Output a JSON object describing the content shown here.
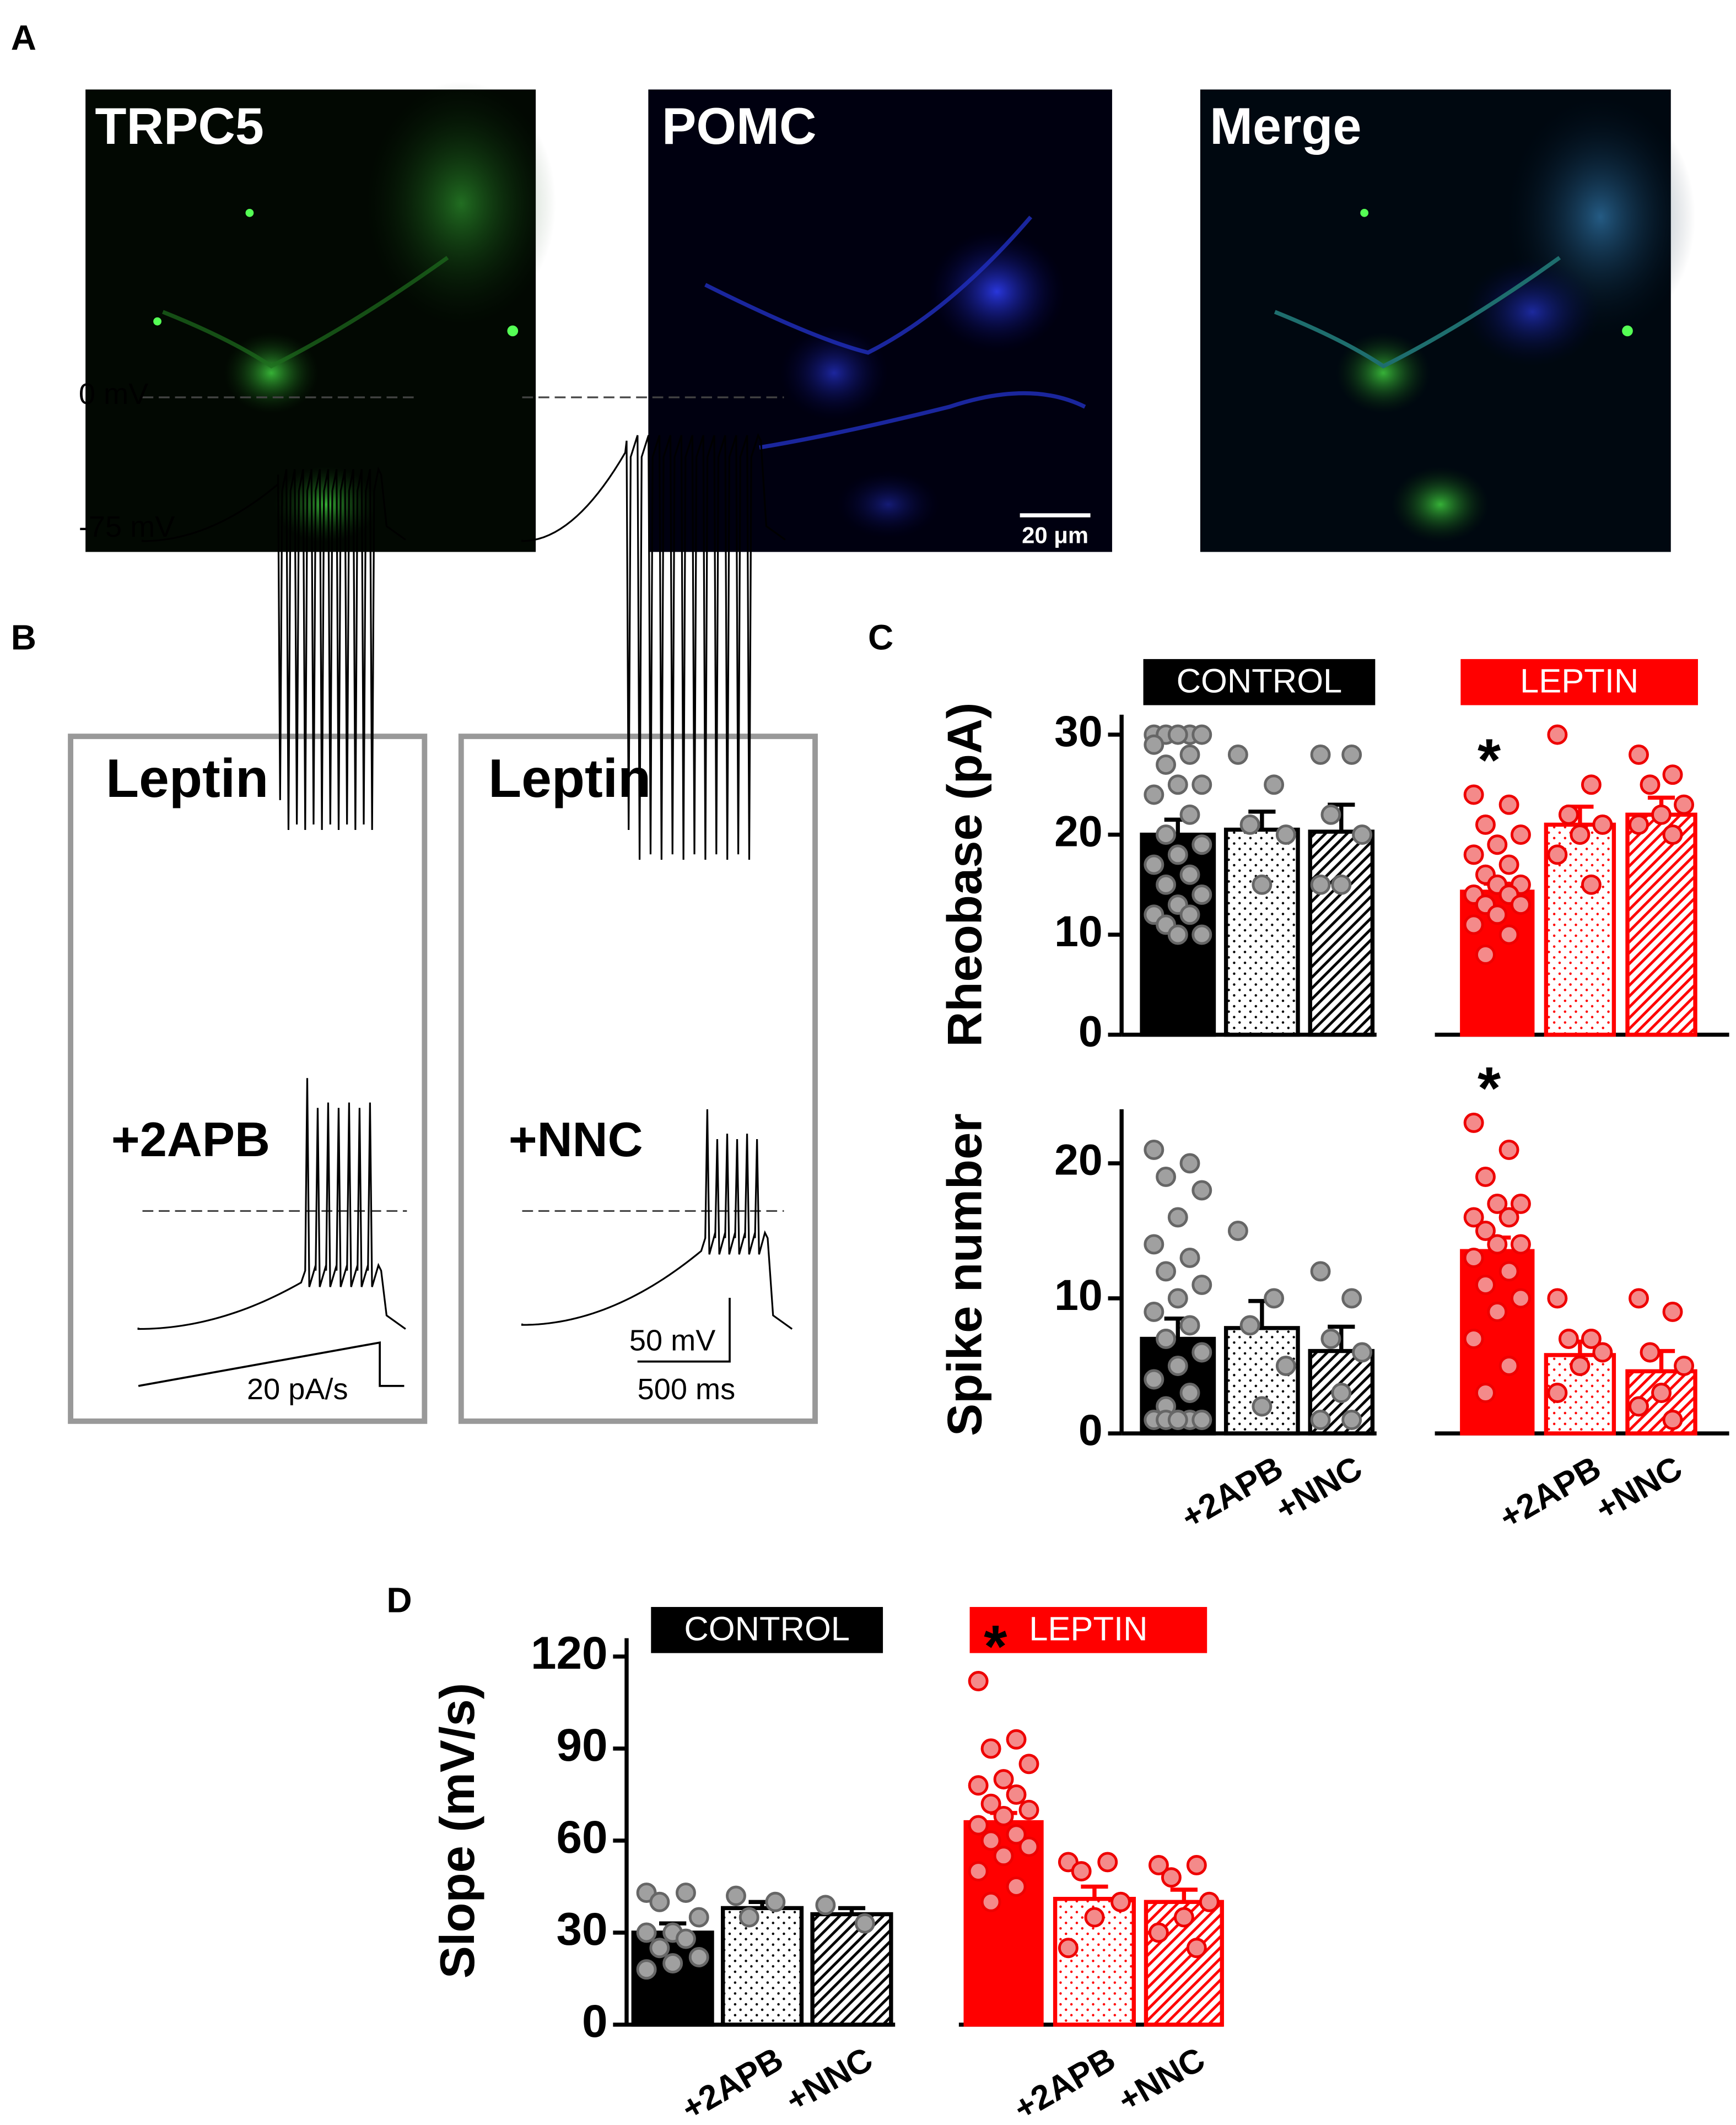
{
  "panel_labels": [
    "A",
    "B",
    "C",
    "D"
  ],
  "images": [
    {
      "label": "TRPC5"
    },
    {
      "label": "POMC"
    },
    {
      "label": "Merge"
    }
  ],
  "scale_bar": "20 μm",
  "traces": {
    "condition": "Leptin",
    "zero": "0 mV",
    "rest": "-75 mV",
    "drugs": [
      "+2APB",
      "+NNC"
    ],
    "ramp": "20 pA/s",
    "vbar": "50 mV",
    "tbar": "500 ms"
  },
  "chart_data": [
    {
      "type": "bar",
      "y_label": "Rheobase (pA)",
      "ylim": [
        0,
        32
      ],
      "yticks": [
        0,
        10,
        20,
        30
      ],
      "fills": [
        "solid",
        "dots",
        "hatch"
      ],
      "groups": [
        {
          "name": "CONTROL",
          "color": "#000000",
          "point_color": "#a0a0a0",
          "values": [
            20,
            20.5,
            20.3
          ],
          "errors": [
            1.5,
            1.8,
            2.7
          ],
          "labels": [
            null,
            null,
            null
          ],
          "points": [
            [
              30,
              30,
              30,
              30,
              30,
              29,
              28,
              27,
              25,
              25,
              24,
              22,
              20,
              19,
              18,
              17,
              16,
              15,
              14,
              13,
              12,
              12,
              11,
              10,
              10
            ],
            [
              28,
              25,
              21,
              20,
              15
            ],
            [
              28,
              28,
              22,
              20,
              15,
              15
            ]
          ]
        },
        {
          "name": "LEPTIN",
          "color": "#ff0000",
          "point_color": "#f48a8a",
          "values": [
            14.3,
            21,
            22
          ],
          "errors": [
            0.8,
            1.8,
            1.7
          ],
          "labels": [
            "*",
            null,
            null
          ],
          "points": [
            [
              24,
              23,
              21,
              20,
              19,
              18,
              17,
              16,
              15,
              15,
              14,
              14,
              13,
              13,
              12,
              11,
              10,
              8
            ],
            [
              30,
              25,
              22,
              21,
              20,
              18,
              15
            ],
            [
              28,
              26,
              25,
              23,
              22,
              21,
              20
            ]
          ]
        }
      ]
    },
    {
      "type": "bar",
      "y_label": "Spike number",
      "ylim": [
        0,
        24
      ],
      "yticks": [
        0,
        10,
        20
      ],
      "fills": [
        "solid",
        "dots",
        "hatch"
      ],
      "categories": [
        null,
        "+2APB",
        "+NNC"
      ],
      "groups": [
        {
          "color": "#000000",
          "point_color": "#a0a0a0",
          "values": [
            7,
            7.8,
            6.1
          ],
          "errors": [
            1.5,
            2,
            1.8
          ],
          "labels": [
            null,
            null,
            null
          ],
          "points": [
            [
              21,
              20,
              19,
              18,
              16,
              14,
              13,
              12,
              11,
              10,
              9,
              8,
              7,
              6,
              5,
              4,
              3,
              2,
              1,
              1,
              1,
              1,
              1,
              1,
              1
            ],
            [
              15,
              10,
              8,
              5,
              2
            ],
            [
              12,
              10,
              7,
              6,
              3,
              1,
              1
            ]
          ]
        },
        {
          "color": "#ff0000",
          "point_color": "#f48a8a",
          "values": [
            13.5,
            5.8,
            4.6
          ],
          "errors": [
            1,
            1,
            1.5
          ],
          "labels": [
            "*",
            null,
            null
          ],
          "points": [
            [
              23,
              21,
              19,
              17,
              17,
              16,
              16,
              15,
              14,
              14,
              13,
              12,
              11,
              10,
              9,
              7,
              5,
              3
            ],
            [
              10,
              7,
              7,
              6,
              5,
              3
            ],
            [
              10,
              9,
              6,
              5,
              3,
              2,
              1
            ]
          ]
        }
      ]
    },
    {
      "type": "bar",
      "y_label": "Slope (mV/s)",
      "ylim": [
        0,
        126
      ],
      "yticks": [
        0,
        30,
        60,
        90,
        120
      ],
      "fills": [
        "solid",
        "dots",
        "hatch"
      ],
      "categories": [
        null,
        "+2APB",
        "+NNC"
      ],
      "groups": [
        {
          "name": "CONTROL",
          "color": "#000000",
          "point_color": "#a0a0a0",
          "values": [
            30,
            38,
            36
          ],
          "errors": [
            3,
            2,
            2
          ],
          "labels": [
            null,
            null,
            null
          ],
          "points": [
            [
              43,
              43,
              40,
              35,
              30,
              30,
              28,
              25,
              22,
              20,
              18
            ],
            [
              42,
              40,
              35
            ],
            [
              39,
              33
            ]
          ]
        },
        {
          "name": "LEPTIN",
          "color": "#ff0000",
          "point_color": "#f48a8a",
          "values": [
            66,
            41,
            40
          ],
          "errors": [
            3,
            4,
            4
          ],
          "labels": [
            "*",
            null,
            null
          ],
          "points": [
            [
              112,
              93,
              90,
              85,
              80,
              78,
              75,
              72,
              70,
              68,
              65,
              62,
              60,
              58,
              55,
              50,
              45,
              40
            ],
            [
              53,
              53,
              50,
              40,
              35,
              25
            ],
            [
              52,
              52,
              48,
              40,
              35,
              30,
              25
            ]
          ]
        }
      ]
    }
  ]
}
